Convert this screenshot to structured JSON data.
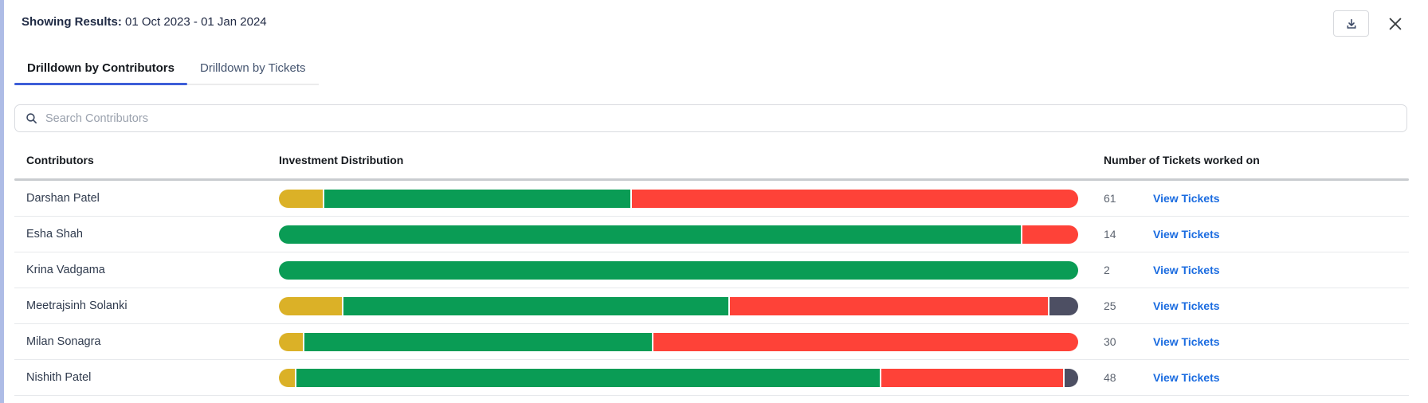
{
  "header": {
    "results_label": "Showing Results:",
    "date_range": " 01 Oct 2023 - 01 Jan 2024"
  },
  "toolbar": {
    "download_icon": "download",
    "close_icon": "close"
  },
  "tabs": [
    {
      "label": "Drilldown by Contributors",
      "active": true
    },
    {
      "label": "Drilldown by Tickets",
      "active": false
    }
  ],
  "search": {
    "placeholder": "Search Contributors"
  },
  "table": {
    "columns": {
      "contributors": "Contributors",
      "distribution": "Investment Distribution",
      "tickets": "Number of Tickets worked on"
    },
    "link_label": "View Tickets",
    "rows": [
      {
        "name": "Darshan Patel",
        "tickets": "61",
        "segments": [
          {
            "name": "yellow",
            "color": "#DBB127",
            "pct": 5.5
          },
          {
            "name": "green",
            "color": "#0A9C55",
            "pct": 38.3
          },
          {
            "name": "red",
            "color": "#FE4238",
            "pct": 56.2
          }
        ]
      },
      {
        "name": "Esha Shah",
        "tickets": "14",
        "segments": [
          {
            "name": "green",
            "color": "#0A9C55",
            "pct": 92.8
          },
          {
            "name": "red",
            "color": "#FE4238",
            "pct": 7.2
          }
        ]
      },
      {
        "name": "Krina Vadgama",
        "tickets": "2",
        "segments": [
          {
            "name": "green",
            "color": "#0A9C55",
            "pct": 100
          }
        ]
      },
      {
        "name": "Meetrajsinh Solanki",
        "tickets": "25",
        "segments": [
          {
            "name": "yellow",
            "color": "#DBB127",
            "pct": 7.9
          },
          {
            "name": "green",
            "color": "#0A9C55",
            "pct": 48.1
          },
          {
            "name": "red",
            "color": "#FE4238",
            "pct": 39.8
          },
          {
            "name": "dark",
            "color": "#4D4F63",
            "pct": 4.2
          }
        ]
      },
      {
        "name": "Milan Sonagra",
        "tickets": "30",
        "segments": [
          {
            "name": "yellow",
            "color": "#DBB127",
            "pct": 3.0
          },
          {
            "name": "green",
            "color": "#0A9C55",
            "pct": 43.5
          },
          {
            "name": "red",
            "color": "#FE4238",
            "pct": 53.5
          }
        ]
      },
      {
        "name": "Nishith Patel",
        "tickets": "48",
        "segments": [
          {
            "name": "yellow",
            "color": "#DBB127",
            "pct": 2.0
          },
          {
            "name": "green",
            "color": "#0A9C55",
            "pct": 73.0
          },
          {
            "name": "red",
            "color": "#FE4238",
            "pct": 22.7
          },
          {
            "name": "dark",
            "color": "#4D4F63",
            "pct": 2.3
          }
        ]
      }
    ]
  },
  "colors": {
    "accent_tab": "#3D5ED8",
    "link_blue": "#1B6CE0",
    "segment_yellow": "#DBB127",
    "segment_green": "#0A9C55",
    "segment_red": "#FE4238",
    "segment_dark": "#4D4F63",
    "left_strip": "#AEBCE6"
  }
}
